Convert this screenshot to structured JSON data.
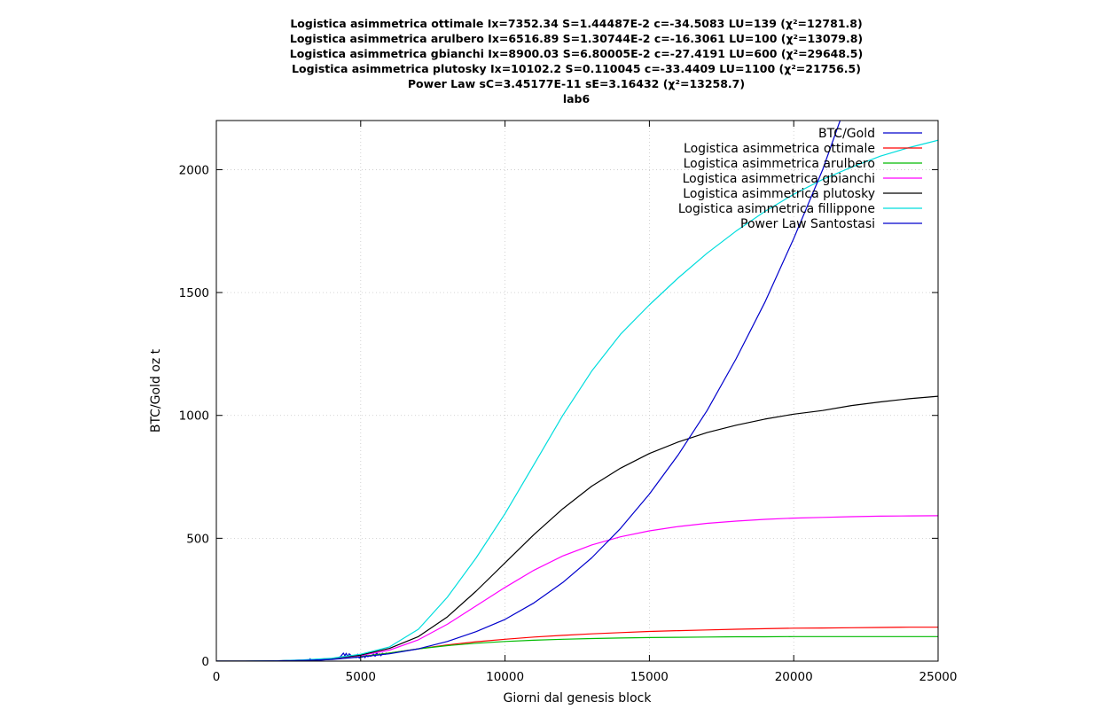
{
  "chart_data": {
    "type": "line",
    "title_lines": [
      "Logistica asimmetrica ottimale Ix=7352.34 S=1.44487E-2 c=-34.5083 LU=139 (χ²=12781.8)",
      "Logistica asimmetrica arulbero Ix=6516.89 S=1.30744E-2 c=-16.3061 LU=100 (χ²=13079.8)",
      "Logistica asimmetrica gbianchi Ix=8900.03 S=6.80005E-2 c=-27.4191 LU=600 (χ²=29648.5)",
      "Logistica asimmetrica plutosky Ix=10102.2 S=0.110045 c=-33.4409 LU=1100 (χ²=21756.5)",
      "Power Law sC=3.45177E-11 sE=3.16432 (χ²=13258.7)",
      "lab6"
    ],
    "xlabel": "Giorni dal genesis block",
    "ylabel": "BTC/Gold oz t",
    "xlim": [
      0,
      25000
    ],
    "ylim": [
      0,
      2200
    ],
    "xticks": [
      0,
      5000,
      10000,
      15000,
      20000,
      25000
    ],
    "yticks": [
      0,
      500,
      1000,
      1500,
      2000
    ],
    "grid": true,
    "legend_position": "top-right",
    "series": [
      {
        "name": "BTC/Gold",
        "color": "#0000cc",
        "x": [
          3000,
          3200,
          3250,
          3300,
          3500,
          3700,
          3900,
          4100,
          4300,
          4400,
          4450,
          4500,
          4550,
          4600,
          4650,
          4700,
          4750,
          4800,
          4850,
          4900,
          4950,
          5000,
          5050,
          5100,
          5150,
          5200,
          5250,
          5300,
          5350,
          5400,
          5450,
          5500,
          5550,
          5600,
          5650,
          5700,
          5750,
          5800,
          5850,
          5900
        ],
        "y": [
          1,
          2,
          10,
          3,
          3,
          5,
          7,
          10,
          18,
          33,
          22,
          32,
          18,
          30,
          25,
          20,
          17,
          24,
          14,
          28,
          12,
          20,
          16,
          22,
          14,
          26,
          18,
          22,
          20,
          25,
          28,
          20,
          35,
          25,
          30,
          22,
          32,
          30,
          28,
          34
        ]
      },
      {
        "name": "Logistica asimmetrica ottimale",
        "color": "#ff0000",
        "x": [
          0,
          1000,
          2000,
          3000,
          4000,
          5000,
          6000,
          7000,
          8000,
          9000,
          10000,
          11000,
          12000,
          13000,
          14000,
          15000,
          16000,
          17000,
          18000,
          19000,
          20000,
          21000,
          22000,
          23000,
          24000,
          25000
        ],
        "y": [
          0,
          0,
          1,
          3,
          8,
          18,
          33,
          50,
          66,
          79,
          89,
          98,
          105,
          111,
          116,
          121,
          124,
          127,
          130,
          132,
          134,
          135,
          136,
          137,
          138,
          138
        ]
      },
      {
        "name": "Logistica asimmetrica arulbero",
        "color": "#00bb00",
        "x": [
          0,
          1000,
          2000,
          3000,
          4000,
          5000,
          6000,
          7000,
          8000,
          9000,
          10000,
          11000,
          12000,
          13000,
          14000,
          15000,
          16000,
          17000,
          18000,
          19000,
          20000,
          21000,
          22000,
          23000,
          24000,
          25000
        ],
        "y": [
          0,
          0,
          1,
          3,
          8,
          18,
          33,
          50,
          63,
          73,
          80,
          85,
          89,
          92,
          94,
          96,
          97,
          98,
          99,
          99,
          100,
          100,
          100,
          100,
          100,
          100
        ]
      },
      {
        "name": "Logistica asimmetrica gbianchi",
        "color": "#ff00ff",
        "x": [
          0,
          1000,
          2000,
          3000,
          4000,
          5000,
          6000,
          7000,
          8000,
          9000,
          10000,
          11000,
          12000,
          13000,
          14000,
          15000,
          16000,
          17000,
          18000,
          19000,
          20000,
          21000,
          22000,
          23000,
          24000,
          25000
        ],
        "y": [
          0,
          0,
          1,
          4,
          10,
          23,
          45,
          87,
          150,
          225,
          300,
          370,
          428,
          473,
          506,
          530,
          548,
          561,
          570,
          577,
          582,
          585,
          588,
          590,
          591,
          592
        ]
      },
      {
        "name": "Logistica asimmetrica plutosky",
        "color": "#000000",
        "x": [
          0,
          1000,
          2000,
          3000,
          4000,
          5000,
          6000,
          7000,
          8000,
          9000,
          10000,
          11000,
          12000,
          13000,
          14000,
          15000,
          16000,
          17000,
          18000,
          19000,
          20000,
          21000,
          22000,
          23000,
          24000,
          25000
        ],
        "y": [
          0,
          0,
          1,
          4,
          11,
          25,
          52,
          100,
          180,
          285,
          400,
          515,
          620,
          712,
          785,
          845,
          892,
          930,
          960,
          985,
          1005,
          1020,
          1040,
          1055,
          1068,
          1078
        ]
      },
      {
        "name": "Logistica asimmetrica fillippone",
        "color": "#00dddd",
        "x": [
          0,
          1000,
          2000,
          3000,
          4000,
          5000,
          6000,
          7000,
          8000,
          9000,
          10000,
          11000,
          12000,
          13000,
          14000,
          15000,
          16000,
          17000,
          18000,
          19000,
          20000,
          21000,
          22000,
          23000,
          24000,
          25000
        ],
        "y": [
          0,
          0,
          1,
          5,
          12,
          28,
          58,
          130,
          260,
          420,
          600,
          800,
          1000,
          1180,
          1330,
          1450,
          1560,
          1660,
          1750,
          1830,
          1900,
          1960,
          2010,
          2055,
          2090,
          2120
        ]
      },
      {
        "name": "Power Law Santostasi",
        "color": "#0000cc",
        "x": [
          0,
          1000,
          2000,
          3000,
          4000,
          5000,
          6000,
          7000,
          8000,
          9000,
          10000,
          11000,
          12000,
          13000,
          14000,
          15000,
          16000,
          17000,
          18000,
          19000,
          20000,
          21000,
          22000,
          22500
        ],
        "y": [
          0,
          0,
          1,
          3,
          7,
          17,
          30,
          50,
          80,
          120,
          170,
          237,
          320,
          420,
          540,
          680,
          840,
          1020,
          1230,
          1460,
          1720,
          2000,
          2330,
          2510
        ]
      }
    ]
  }
}
